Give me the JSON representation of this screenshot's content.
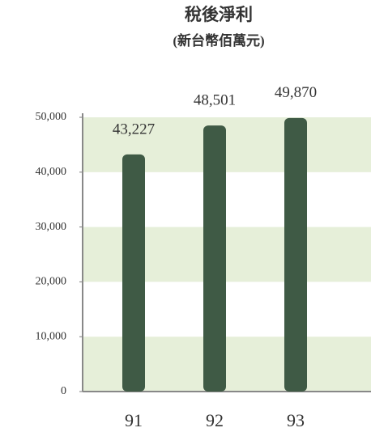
{
  "chart_data": {
    "type": "bar",
    "title": "稅後淨利",
    "subtitle": "(新台幣佰萬元)",
    "categories": [
      "91",
      "92",
      "93"
    ],
    "values": [
      43227,
      48501,
      49870
    ],
    "value_labels": [
      "43,227",
      "48,501",
      "49,870"
    ],
    "color": "#3f5a45",
    "ylim": [
      0,
      50000
    ],
    "yticks": [
      0,
      {
        "value": 10000,
        "label": "10,000"
      },
      {
        "value": 20000,
        "label": "20,000"
      },
      {
        "value": 30000,
        "label": "30,000"
      },
      {
        "value": 40000,
        "label": "40,000"
      },
      {
        "value": 50000,
        "label": "50,000"
      }
    ],
    "band_color": "#e6efd9"
  }
}
